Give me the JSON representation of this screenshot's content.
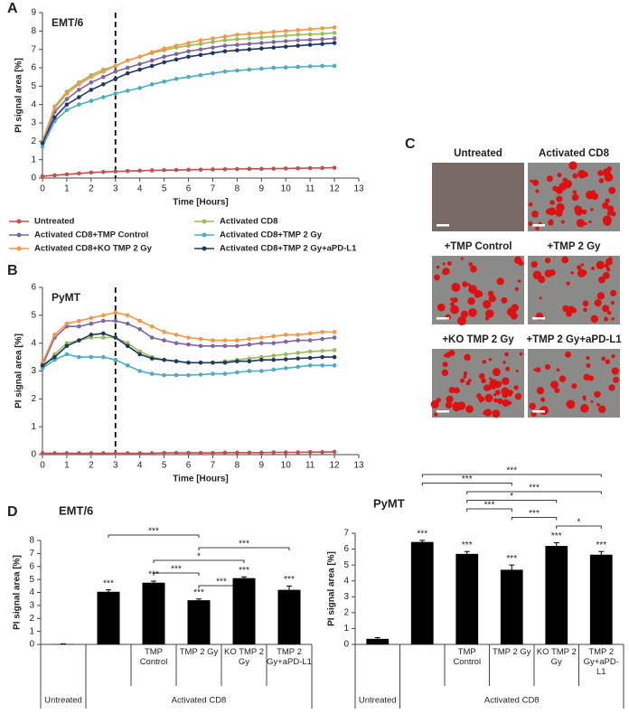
{
  "panels": [
    "A",
    "B",
    "C",
    "D"
  ],
  "images": {
    "labels": [
      "Untreated",
      "Activated CD8",
      "+TMP Control",
      "+TMP 2 Gy",
      "+KO TMP 2 Gy",
      "+TMP 2 Gy+aPD-L1"
    ]
  },
  "chart_data": [
    {
      "type": "line",
      "title": "EMT/6",
      "xlabel": "Time [Hours]",
      "ylabel": "PI signal area [%]",
      "x": [
        0,
        0.5,
        1,
        1.5,
        2,
        2.5,
        3,
        3.5,
        4,
        4.5,
        5,
        5.5,
        6,
        6.5,
        7,
        7.5,
        8,
        8.5,
        9,
        9.5,
        10,
        10.5,
        11,
        11.5,
        12
      ],
      "xlim": [
        0,
        13
      ],
      "xticks": [
        0,
        1,
        2,
        3,
        4,
        5,
        6,
        7,
        8,
        9,
        10,
        11,
        12,
        13
      ],
      "ylim": [
        0,
        9
      ],
      "yticks": [
        0,
        1,
        2,
        3,
        4,
        5,
        6,
        7,
        8,
        9
      ],
      "vline": 3,
      "series": [
        {
          "name": "Untreated",
          "color": "#c0504d",
          "values": [
            0.1,
            0.15,
            0.2,
            0.25,
            0.3,
            0.33,
            0.36,
            0.38,
            0.4,
            0.42,
            0.43,
            0.44,
            0.45,
            0.46,
            0.47,
            0.48,
            0.49,
            0.5,
            0.5,
            0.51,
            0.52,
            0.53,
            0.54,
            0.55,
            0.56
          ]
        },
        {
          "name": "Activated CD8",
          "color": "#9bbb59",
          "values": [
            2.0,
            3.9,
            4.7,
            5.2,
            5.6,
            5.9,
            6.1,
            6.4,
            6.6,
            6.8,
            6.95,
            7.1,
            7.2,
            7.3,
            7.4,
            7.5,
            7.55,
            7.6,
            7.65,
            7.7,
            7.75,
            7.8,
            7.82,
            7.85,
            7.9
          ]
        },
        {
          "name": "Activated CD8+TMP Control",
          "color": "#8064a2",
          "values": [
            1.9,
            3.6,
            4.3,
            4.8,
            5.2,
            5.5,
            5.8,
            6.0,
            6.2,
            6.4,
            6.6,
            6.75,
            6.9,
            7.0,
            7.1,
            7.2,
            7.25,
            7.3,
            7.35,
            7.4,
            7.45,
            7.5,
            7.52,
            7.55,
            7.6
          ]
        },
        {
          "name": "Activated CD8+TMP 2 Gy",
          "color": "#4bacc6",
          "values": [
            1.7,
            3.1,
            3.7,
            4.0,
            4.2,
            4.4,
            4.6,
            4.75,
            4.9,
            5.1,
            5.25,
            5.4,
            5.5,
            5.6,
            5.7,
            5.8,
            5.85,
            5.9,
            5.95,
            6.0,
            6.02,
            6.05,
            6.08,
            6.1,
            6.1
          ]
        },
        {
          "name": "Activated CD8+KO TMP 2 Gy",
          "color": "#f79646",
          "values": [
            2.0,
            3.8,
            4.6,
            5.1,
            5.5,
            5.8,
            6.1,
            6.4,
            6.6,
            6.85,
            7.05,
            7.2,
            7.35,
            7.5,
            7.6,
            7.7,
            7.8,
            7.85,
            7.9,
            7.95,
            8.0,
            8.05,
            8.1,
            8.15,
            8.2
          ]
        },
        {
          "name": "Activated CD8+TMP 2 Gy+aPD-L1",
          "color": "#1f3864",
          "values": [
            1.9,
            3.3,
            4.0,
            4.4,
            4.8,
            5.1,
            5.4,
            5.7,
            5.9,
            6.1,
            6.3,
            6.45,
            6.6,
            6.7,
            6.8,
            6.9,
            6.95,
            7.0,
            7.05,
            7.1,
            7.15,
            7.2,
            7.25,
            7.3,
            7.35
          ]
        }
      ]
    },
    {
      "type": "line",
      "title": "PyMT",
      "xlabel": "Time [Hours]",
      "ylabel": "PI signal area [%]",
      "x": [
        0,
        0.5,
        1,
        1.5,
        2,
        2.5,
        3,
        3.5,
        4,
        4.5,
        5,
        5.5,
        6,
        6.5,
        7,
        7.5,
        8,
        8.5,
        9,
        9.5,
        10,
        10.5,
        11,
        11.5,
        12
      ],
      "xlim": [
        0,
        13
      ],
      "xticks": [
        0,
        1,
        2,
        3,
        4,
        5,
        6,
        7,
        8,
        9,
        10,
        11,
        12,
        13
      ],
      "ylim": [
        0,
        6
      ],
      "yticks": [
        0,
        1,
        2,
        3,
        4,
        5,
        6
      ],
      "vline": 3,
      "series": [
        {
          "color": "#c0504d",
          "values": [
            0.05,
            0.05,
            0.05,
            0.05,
            0.05,
            0.05,
            0.05,
            0.05,
            0.05,
            0.05,
            0.06,
            0.06,
            0.06,
            0.06,
            0.06,
            0.07,
            0.07,
            0.07,
            0.07,
            0.08,
            0.08,
            0.08,
            0.09,
            0.09,
            0.1
          ]
        },
        {
          "color": "#9bbb59",
          "values": [
            3.1,
            3.6,
            4.0,
            4.1,
            4.2,
            4.2,
            4.2,
            4.0,
            3.7,
            3.5,
            3.4,
            3.35,
            3.3,
            3.3,
            3.3,
            3.35,
            3.4,
            3.45,
            3.5,
            3.55,
            3.6,
            3.65,
            3.7,
            3.72,
            3.75
          ]
        },
        {
          "color": "#8064a2",
          "values": [
            3.2,
            4.2,
            4.6,
            4.6,
            4.7,
            4.8,
            4.8,
            4.7,
            4.5,
            4.2,
            4.1,
            4.0,
            3.95,
            3.9,
            3.9,
            3.9,
            3.9,
            3.95,
            4.0,
            4.0,
            4.05,
            4.1,
            4.1,
            4.15,
            4.2
          ]
        },
        {
          "color": "#4bacc6",
          "values": [
            3.1,
            3.4,
            3.6,
            3.5,
            3.5,
            3.5,
            3.4,
            3.2,
            3.0,
            2.9,
            2.85,
            2.85,
            2.85,
            2.87,
            2.9,
            2.9,
            2.95,
            3.0,
            3.0,
            3.05,
            3.1,
            3.15,
            3.2,
            3.2,
            3.2
          ]
        },
        {
          "color": "#f79646",
          "values": [
            3.3,
            4.3,
            4.7,
            4.8,
            4.9,
            5.0,
            5.1,
            5.0,
            4.8,
            4.6,
            4.4,
            4.3,
            4.2,
            4.15,
            4.1,
            4.1,
            4.1,
            4.15,
            4.2,
            4.25,
            4.3,
            4.3,
            4.35,
            4.4,
            4.4
          ]
        },
        {
          "color": "#1f3864",
          "values": [
            3.2,
            3.5,
            3.9,
            4.1,
            4.3,
            4.35,
            4.2,
            3.9,
            3.6,
            3.45,
            3.4,
            3.35,
            3.3,
            3.3,
            3.3,
            3.3,
            3.35,
            3.35,
            3.4,
            3.4,
            3.42,
            3.45,
            3.47,
            3.5,
            3.5
          ]
        }
      ]
    },
    {
      "type": "bar",
      "title": "EMT/6",
      "ylabel": "PI signal area [%]",
      "color": "#000000",
      "categories": [
        null,
        null,
        "TMP Control",
        "TMP 2 Gy",
        "KO TMP 2 Gy",
        "TMP 2 Gy+aPD-L1"
      ],
      "groups": [
        {
          "label": "Untreated",
          "count": 1
        },
        {
          "label": "Activated CD8",
          "count": 5
        }
      ],
      "values": [
        0.02,
        4.05,
        4.75,
        3.4,
        5.1,
        4.2
      ],
      "errors": [
        0.02,
        0.15,
        0.12,
        0.1,
        0.1,
        0.3
      ],
      "stars": [
        null,
        "***",
        "***",
        "***",
        "***",
        "***"
      ],
      "comparisons": [
        {
          "from": 1,
          "to": 3,
          "label": "***"
        },
        {
          "from": 3,
          "to": 5,
          "label": "***"
        },
        {
          "from": 2,
          "to": 4,
          "label": "*"
        },
        {
          "from": 2,
          "to": 3,
          "label": "***"
        },
        {
          "from": 3,
          "to": 4,
          "label": "***"
        }
      ],
      "ylim": [
        0,
        8
      ],
      "yticks": [
        0,
        1,
        2,
        3,
        4,
        5,
        6,
        7,
        8
      ]
    },
    {
      "type": "bar",
      "title": "PyMT",
      "ylabel": "PI signal area [%]",
      "color": "#000000",
      "categories": [
        null,
        null,
        "TMP Control",
        "TMP 2 Gy",
        "KO TMP 2 Gy",
        "TMP 2 Gy+aPD-L1"
      ],
      "groups": [
        {
          "label": "Untreated",
          "count": 1
        },
        {
          "label": "Activated CD8",
          "count": 5
        }
      ],
      "values": [
        0.35,
        6.45,
        5.7,
        4.7,
        6.2,
        5.65
      ],
      "errors": [
        0.08,
        0.1,
        0.15,
        0.3,
        0.2,
        0.2
      ],
      "stars": [
        null,
        "***",
        "***",
        "***",
        "***",
        "***"
      ],
      "comparisons": [
        {
          "from": 1,
          "to": 5,
          "label": "***"
        },
        {
          "from": 1,
          "to": 3,
          "label": "***"
        },
        {
          "from": 2,
          "to": 5,
          "label": "***"
        },
        {
          "from": 2,
          "to": 4,
          "label": "*"
        },
        {
          "from": 2,
          "to": 3,
          "label": "***"
        },
        {
          "from": 3,
          "to": 4,
          "label": "***"
        },
        {
          "from": 4,
          "to": 5,
          "label": "*"
        }
      ],
      "ylim": [
        0,
        7
      ],
      "yticks": [
        0,
        1,
        2,
        3,
        4,
        5,
        6,
        7
      ]
    }
  ]
}
